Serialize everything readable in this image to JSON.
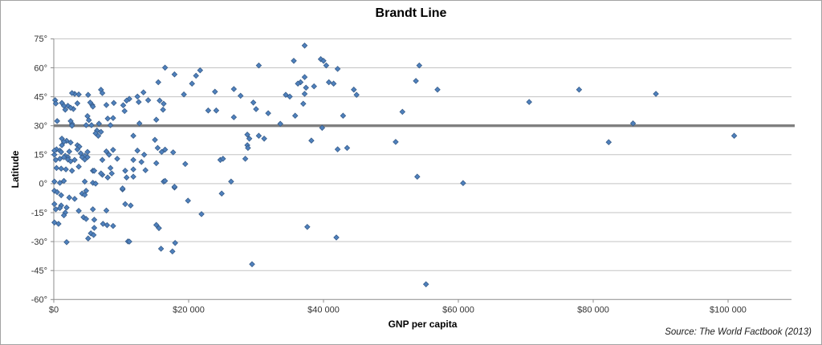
{
  "source_note": "Source: The World Factbook (2013)",
  "colors": {
    "marker_fill": "#4F81BD",
    "marker_stroke": "#385D8A",
    "gridline": "#C3C3C3",
    "axis": "#8C8C8C",
    "brandt_line": "#7F7F7F",
    "tick_text": "#333333"
  },
  "chart_data": {
    "type": "scatter",
    "title": "Brandt Line",
    "xlabel": "GNP per capita",
    "ylabel": "Latitude",
    "xlim": [
      0,
      109400
    ],
    "ylim": [
      -60,
      75
    ],
    "grid": "horizontal",
    "legend": "none",
    "marker": {
      "shape": "diamond",
      "fill": "#4F81BD",
      "stroke": "#385D8A"
    },
    "brandt_line": {
      "latitude": 30,
      "color": "#7F7F7F",
      "width": 3.4
    },
    "x_ticks": [
      {
        "value": 0,
        "label": "$0"
      },
      {
        "value": 20000,
        "label": "$20 000"
      },
      {
        "value": 40000,
        "label": "$40 000"
      },
      {
        "value": 60000,
        "label": "$60 000"
      },
      {
        "value": 80000,
        "label": "$80 000"
      },
      {
        "value": 100000,
        "label": "$100 000"
      }
    ],
    "y_ticks": [
      {
        "value": 75,
        "label": "75°"
      },
      {
        "value": 60,
        "label": "60°"
      },
      {
        "value": 45,
        "label": "45°"
      },
      {
        "value": 30,
        "label": "30°"
      },
      {
        "value": 15,
        "label": "15°"
      },
      {
        "value": 0,
        "label": "0°"
      },
      {
        "value": -15,
        "label": "-15°"
      },
      {
        "value": -30,
        "label": "-30°"
      },
      {
        "value": -45,
        "label": "-45°"
      },
      {
        "value": -60,
        "label": "-60°"
      }
    ],
    "points": [
      [
        200,
        43.2
      ],
      [
        300,
        41.5
      ],
      [
        500,
        32.4
      ],
      [
        1200,
        41.8
      ],
      [
        2100,
        40.3
      ],
      [
        2900,
        38.7
      ],
      [
        1700,
        38.3
      ],
      [
        3500,
        41.6
      ],
      [
        5700,
        40.7
      ],
      [
        7800,
        40.7
      ],
      [
        10300,
        40.6
      ],
      [
        10500,
        37.6
      ],
      [
        11200,
        43.9
      ],
      [
        3100,
        46.5
      ],
      [
        5100,
        46.0
      ],
      [
        7000,
        48.6
      ],
      [
        8900,
        41.8
      ],
      [
        2700,
        46.9
      ],
      [
        3700,
        46.2
      ],
      [
        7200,
        46.9
      ],
      [
        1500,
        40.3
      ],
      [
        2500,
        39.3
      ],
      [
        5400,
        42.0
      ],
      [
        5800,
        39.9
      ],
      [
        15500,
        52.5
      ],
      [
        13300,
        47.3
      ],
      [
        12400,
        45.1
      ],
      [
        14000,
        43.2
      ],
      [
        15700,
        43.0
      ],
      [
        16300,
        41.4
      ],
      [
        12600,
        42.3
      ],
      [
        10800,
        43.0
      ],
      [
        16200,
        38.3
      ],
      [
        8000,
        33.7
      ],
      [
        5000,
        35.0
      ],
      [
        5200,
        32.9
      ],
      [
        6700,
        31.1
      ],
      [
        2700,
        31.0
      ],
      [
        8400,
        30.3
      ],
      [
        8800,
        34.0
      ],
      [
        12700,
        31.2
      ],
      [
        15200,
        33.1
      ],
      [
        2500,
        32.4
      ],
      [
        2700,
        30.0
      ],
      [
        4800,
        30.3
      ],
      [
        5600,
        30.3
      ],
      [
        6400,
        27.5
      ],
      [
        7000,
        26.8
      ],
      [
        6200,
        26.1
      ],
      [
        6600,
        24.8
      ],
      [
        1200,
        23.3
      ],
      [
        1900,
        22.2
      ],
      [
        1500,
        21.7
      ],
      [
        2500,
        21.3
      ],
      [
        1200,
        19.9
      ],
      [
        3500,
        19.9
      ],
      [
        3800,
        19.2
      ],
      [
        400,
        17.8
      ],
      [
        900,
        17.1
      ],
      [
        100,
        15.0
      ],
      [
        1700,
        14.4
      ],
      [
        2100,
        13.7
      ],
      [
        4000,
        15.7
      ],
      [
        4600,
        14.4
      ],
      [
        5000,
        13.7
      ],
      [
        7800,
        16.7
      ],
      [
        8200,
        15.0
      ],
      [
        8800,
        17.5
      ],
      [
        11800,
        24.8
      ],
      [
        12400,
        17.1
      ],
      [
        13400,
        15.0
      ],
      [
        15000,
        22.7
      ],
      [
        15400,
        18.5
      ],
      [
        16000,
        16.4
      ],
      [
        16500,
        17.6
      ],
      [
        17700,
        16.2
      ],
      [
        100,
        17.1
      ],
      [
        1100,
        16.4
      ],
      [
        2300,
        16.6
      ],
      [
        3500,
        17.8
      ],
      [
        5000,
        16.4
      ],
      [
        300,
        12.3
      ],
      [
        900,
        12.9
      ],
      [
        1500,
        13.7
      ],
      [
        2100,
        12.5
      ],
      [
        2500,
        11.6
      ],
      [
        3100,
        12.3
      ],
      [
        400,
        8.1
      ],
      [
        1100,
        7.8
      ],
      [
        1800,
        7.4
      ],
      [
        2700,
        6.7
      ],
      [
        3700,
        8.8
      ],
      [
        4200,
        13.7
      ],
      [
        4600,
        12.5
      ],
      [
        7200,
        12.3
      ],
      [
        8400,
        8.1
      ],
      [
        7200,
        4.6
      ],
      [
        8600,
        5.3
      ],
      [
        5800,
        6.7
      ],
      [
        9400,
        12.9
      ],
      [
        11800,
        12.3
      ],
      [
        13000,
        11.2
      ],
      [
        15200,
        10.6
      ],
      [
        6000,
        6.7
      ],
      [
        7000,
        5.3
      ],
      [
        8000,
        3.2
      ],
      [
        10600,
        6.7
      ],
      [
        11800,
        7.4
      ],
      [
        10800,
        3.2
      ],
      [
        11800,
        3.6
      ],
      [
        13600,
        7.0
      ],
      [
        16300,
        1.1
      ],
      [
        100,
        1.1
      ],
      [
        900,
        0.4
      ],
      [
        1500,
        1.4
      ],
      [
        4600,
        1.1
      ],
      [
        5800,
        0.4
      ],
      [
        6200,
        0.0
      ],
      [
        4800,
        -3.7
      ],
      [
        100,
        -3.7
      ],
      [
        500,
        -4.4
      ],
      [
        1100,
        -6.0
      ],
      [
        2300,
        -7.2
      ],
      [
        3100,
        -7.9
      ],
      [
        4200,
        -5.1
      ],
      [
        4600,
        -5.8
      ],
      [
        10200,
        -3.0
      ],
      [
        10200,
        -2.5
      ],
      [
        17900,
        -2.0
      ],
      [
        16500,
        1.4
      ],
      [
        17900,
        -1.6
      ],
      [
        26300,
        1.1
      ],
      [
        24900,
        -5.1
      ],
      [
        19900,
        -8.8
      ],
      [
        100,
        -10.6
      ],
      [
        1100,
        -11.3
      ],
      [
        1900,
        -12.4
      ],
      [
        300,
        -13.3
      ],
      [
        900,
        -12.6
      ],
      [
        1700,
        -15.0
      ],
      [
        3700,
        -14.1
      ],
      [
        7800,
        -13.9
      ],
      [
        10600,
        -10.6
      ],
      [
        11400,
        -11.3
      ],
      [
        5800,
        -13.3
      ],
      [
        21900,
        -15.8
      ],
      [
        100,
        -20.1
      ],
      [
        700,
        -20.8
      ],
      [
        1500,
        -16.4
      ],
      [
        4400,
        -17.4
      ],
      [
        4800,
        -18.3
      ],
      [
        6000,
        -18.7
      ],
      [
        7300,
        -20.8
      ],
      [
        7900,
        -21.5
      ],
      [
        6000,
        -22.9
      ],
      [
        5500,
        -25.7
      ],
      [
        5900,
        -26.6
      ],
      [
        8800,
        -21.9
      ],
      [
        5100,
        -28.4
      ],
      [
        1900,
        -30.3
      ],
      [
        11000,
        -29.9
      ],
      [
        15200,
        -21.4
      ],
      [
        15600,
        -23.0
      ],
      [
        11200,
        -30.0
      ],
      [
        15900,
        -33.7
      ],
      [
        17600,
        -35.1
      ],
      [
        18000,
        -30.7
      ],
      [
        29400,
        -41.7
      ],
      [
        37600,
        -22.4
      ],
      [
        41900,
        -27.9
      ],
      [
        30400,
        61.2
      ],
      [
        16500,
        60.1
      ],
      [
        17900,
        56.6
      ],
      [
        21100,
        55.9
      ],
      [
        21700,
        58.7
      ],
      [
        20500,
        51.8
      ],
      [
        19300,
        46.2
      ],
      [
        23900,
        47.6
      ],
      [
        26700,
        49.0
      ],
      [
        27700,
        45.5
      ],
      [
        22900,
        37.9
      ],
      [
        24100,
        37.9
      ],
      [
        29600,
        42.0
      ],
      [
        30000,
        38.6
      ],
      [
        31800,
        36.5
      ],
      [
        26700,
        34.4
      ],
      [
        33600,
        31.0
      ],
      [
        28700,
        25.4
      ],
      [
        29000,
        23.3
      ],
      [
        30400,
        24.8
      ],
      [
        31200,
        23.3
      ],
      [
        28700,
        19.9
      ],
      [
        28800,
        18.5
      ],
      [
        24700,
        12.3
      ],
      [
        25100,
        12.9
      ],
      [
        28400,
        12.9
      ],
      [
        19500,
        10.2
      ],
      [
        37200,
        71.5
      ],
      [
        35600,
        63.6
      ],
      [
        39600,
        64.5
      ],
      [
        40000,
        63.6
      ],
      [
        40400,
        61.2
      ],
      [
        42100,
        59.4
      ],
      [
        36600,
        52.5
      ],
      [
        37200,
        55.2
      ],
      [
        36200,
        51.8
      ],
      [
        37400,
        49.7
      ],
      [
        38600,
        50.4
      ],
      [
        40800,
        52.5
      ],
      [
        41500,
        51.8
      ],
      [
        44500,
        48.7
      ],
      [
        44900,
        46.0
      ],
      [
        34400,
        46.0
      ],
      [
        35000,
        45.1
      ],
      [
        37200,
        46.5
      ],
      [
        37000,
        41.4
      ],
      [
        35800,
        35.2
      ],
      [
        42900,
        35.2
      ],
      [
        51700,
        37.2
      ],
      [
        39800,
        28.9
      ],
      [
        38200,
        22.3
      ],
      [
        50700,
        21.6
      ],
      [
        42100,
        17.8
      ],
      [
        43500,
        18.5
      ],
      [
        54200,
        61.2
      ],
      [
        53700,
        53.2
      ],
      [
        56900,
        48.7
      ],
      [
        53900,
        3.6
      ],
      [
        60700,
        0.3
      ],
      [
        55200,
        -52.1
      ],
      [
        77900,
        48.7
      ],
      [
        89300,
        46.5
      ],
      [
        70500,
        42.3
      ],
      [
        85900,
        31.2
      ],
      [
        100900,
        24.8
      ],
      [
        82300,
        21.5
      ]
    ]
  }
}
